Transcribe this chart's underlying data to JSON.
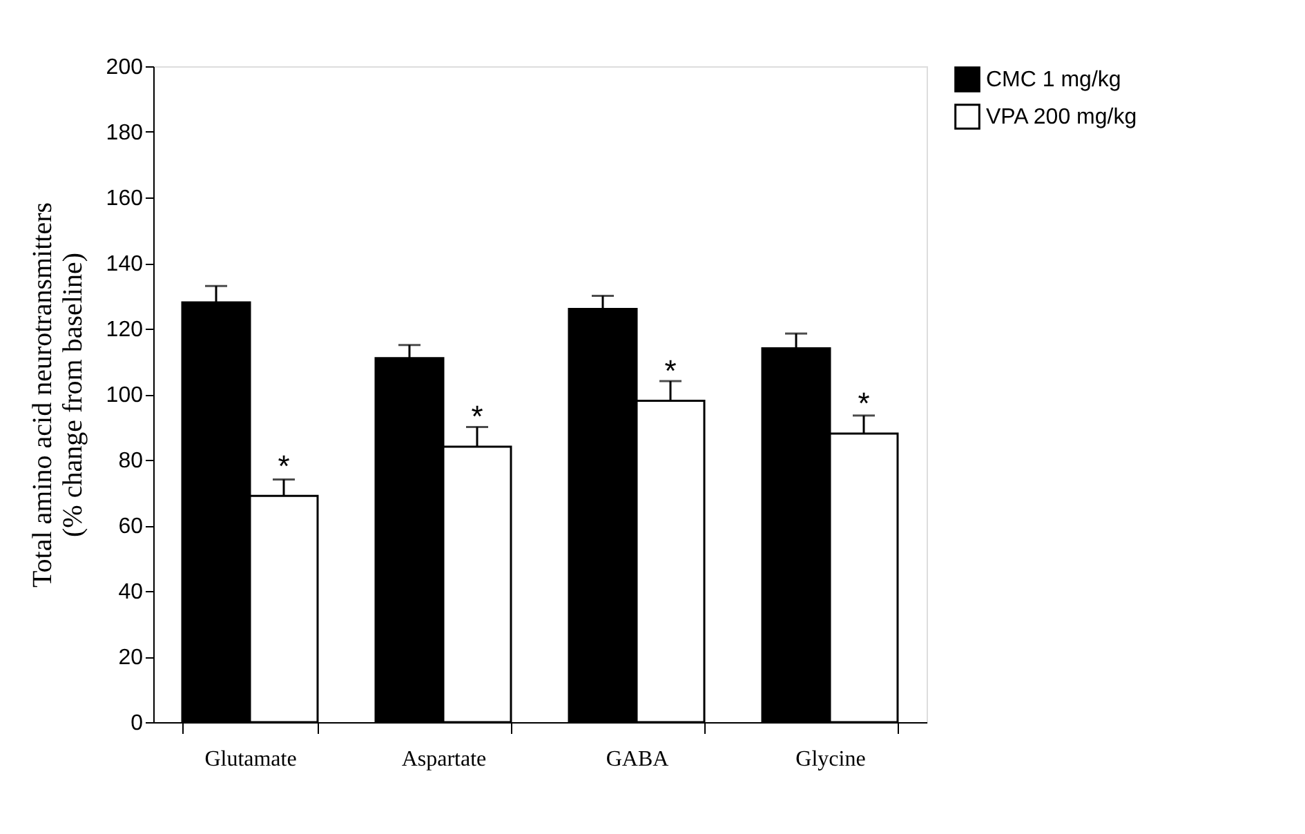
{
  "chart_data": {
    "type": "bar",
    "ylabel": "Total amino acid neurotransmitters\n(% change from baseline)",
    "categories": [
      "Glutamate",
      "Aspartate",
      "GABA",
      "Glycine"
    ],
    "series": [
      {
        "name": "CMC 1 mg/kg",
        "color": "#000000",
        "values": [
          128,
          111,
          126,
          114
        ],
        "errors": [
          5,
          4,
          4,
          4.5
        ]
      },
      {
        "name": "VPA 200 mg/kg",
        "color": "#ffffff",
        "values": [
          69,
          84,
          98,
          88
        ],
        "errors": [
          5,
          6,
          6,
          5.5
        ]
      }
    ],
    "annotations": [
      {
        "text": "*",
        "x": "Glutamate",
        "y": 78
      },
      {
        "text": "*",
        "x": "Aspartate",
        "y": 93
      },
      {
        "text": "*",
        "x": "GABA",
        "y": 107
      },
      {
        "text": "*",
        "x": "Glycine",
        "y": 97
      }
    ],
    "ylim": [
      0,
      200
    ],
    "yticks": [
      0,
      20,
      40,
      60,
      80,
      100,
      120,
      140,
      160,
      180,
      200
    ],
    "grid": false,
    "legend": "right"
  }
}
